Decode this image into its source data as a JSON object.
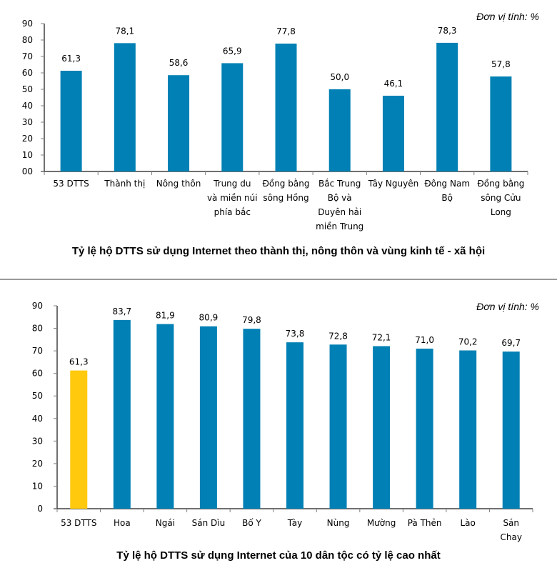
{
  "chart_data": [
    {
      "type": "bar",
      "title": "Tỷ lệ hộ DTTS sử dụng Internet theo thành thị, nông thôn và vùng kinh tế - xã hội",
      "unit_note": "Đơn vị tính: %",
      "categories": [
        [
          "53 DTTS"
        ],
        [
          "Thành thị"
        ],
        [
          "Nông thôn"
        ],
        [
          "Trung du",
          "và miền núi",
          "phía bắc"
        ],
        [
          "Đồng bằng",
          "sông Hồng"
        ],
        [
          "Bắc Trung",
          "Bộ và",
          "Duyên hải",
          "miền Trung"
        ],
        [
          "Tây Nguyên"
        ],
        [
          "Đông Nam",
          "Bộ"
        ],
        [
          "Đồng bằng",
          "sông Cửu",
          "Long"
        ]
      ],
      "values": [
        61.3,
        78.1,
        58.6,
        65.9,
        77.8,
        50.0,
        46.1,
        78.3,
        57.8
      ],
      "value_labels": [
        "61,3",
        "78,1",
        "58,6",
        "65,9",
        "77,8",
        "50,0",
        "46,1",
        "78,3",
        "57,8"
      ],
      "bar_colors": [
        "#0080b4",
        "#0080b4",
        "#0080b4",
        "#0080b4",
        "#0080b4",
        "#0080b4",
        "#0080b4",
        "#0080b4",
        "#0080b4"
      ],
      "yticks": [
        "00",
        "10",
        "20",
        "30",
        "40",
        "50",
        "60",
        "70",
        "80",
        "90"
      ],
      "ylim": [
        0,
        90
      ],
      "xlabel": "",
      "ylabel": "",
      "grid": false,
      "legend": "none"
    },
    {
      "type": "bar",
      "title": "Tỷ lệ hộ DTTS sử dụng Internet của 10 dân tộc có tỷ lệ cao nhất",
      "unit_note": "Đơn vị tính: %",
      "categories": [
        [
          "53 DTTS"
        ],
        [
          "Hoa"
        ],
        [
          "Ngái"
        ],
        [
          "Sán Dìu"
        ],
        [
          "Bố Y"
        ],
        [
          "Tày"
        ],
        [
          "Nùng"
        ],
        [
          "Mường"
        ],
        [
          "Pà Thẻn"
        ],
        [
          "Lào"
        ],
        [
          "Sán",
          "Chay"
        ]
      ],
      "values": [
        61.3,
        83.7,
        81.9,
        80.9,
        79.8,
        73.8,
        72.8,
        72.1,
        71.0,
        70.2,
        69.7
      ],
      "value_labels": [
        "61,3",
        "83,7",
        "81,9",
        "80,9",
        "79,8",
        "73,8",
        "72,8",
        "72,1",
        "71,0",
        "70,2",
        "69,7"
      ],
      "bar_colors": [
        "#ffc90e",
        "#0080b4",
        "#0080b4",
        "#0080b4",
        "#0080b4",
        "#0080b4",
        "#0080b4",
        "#0080b4",
        "#0080b4",
        "#0080b4",
        "#0080b4"
      ],
      "yticks": [
        "0",
        "10",
        "20",
        "30",
        "40",
        "50",
        "60",
        "70",
        "80",
        "90"
      ],
      "ylim": [
        0,
        90
      ],
      "xlabel": "",
      "ylabel": "",
      "grid": false,
      "legend": "none"
    }
  ]
}
